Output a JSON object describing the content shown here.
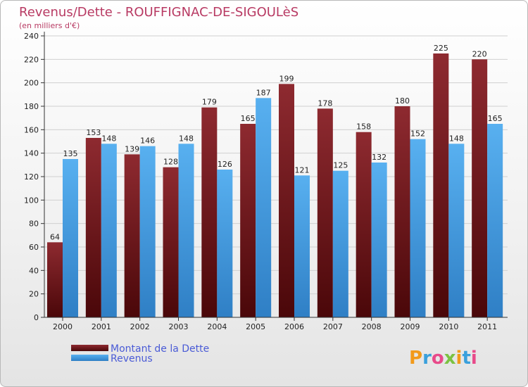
{
  "chart_data": {
    "type": "bar",
    "title": "Revenus/Dette - ROUFFIGNAC-DE-SIGOULèS",
    "subtitle": "(en milliers d'€)",
    "categories": [
      "2000",
      "2001",
      "2002",
      "2003",
      "2004",
      "2005",
      "2006",
      "2007",
      "2008",
      "2009",
      "2010",
      "2011"
    ],
    "series": [
      {
        "name": "Montant de la Dette",
        "color": "#7a1e25",
        "values": [
          64,
          153,
          139,
          128,
          179,
          165,
          199,
          178,
          158,
          180,
          225,
          220
        ]
      },
      {
        "name": "Revenus",
        "color": "#3f9be2",
        "values": [
          135,
          148,
          146,
          148,
          126,
          187,
          121,
          125,
          132,
          152,
          148,
          165
        ]
      }
    ],
    "ylim": [
      0,
      240
    ],
    "yticks": [
      0,
      20,
      40,
      60,
      80,
      100,
      120,
      140,
      160,
      180,
      200,
      220,
      240
    ],
    "grid": true,
    "legend_position": "bottom-left"
  },
  "branding": {
    "logo_text": "Proxiti",
    "logo_colors": [
      "#f29a1b",
      "#3aa0dc",
      "#e84a8a",
      "#7cc242",
      "#f29a1b",
      "#3aa0dc",
      "#e84a8a"
    ]
  }
}
